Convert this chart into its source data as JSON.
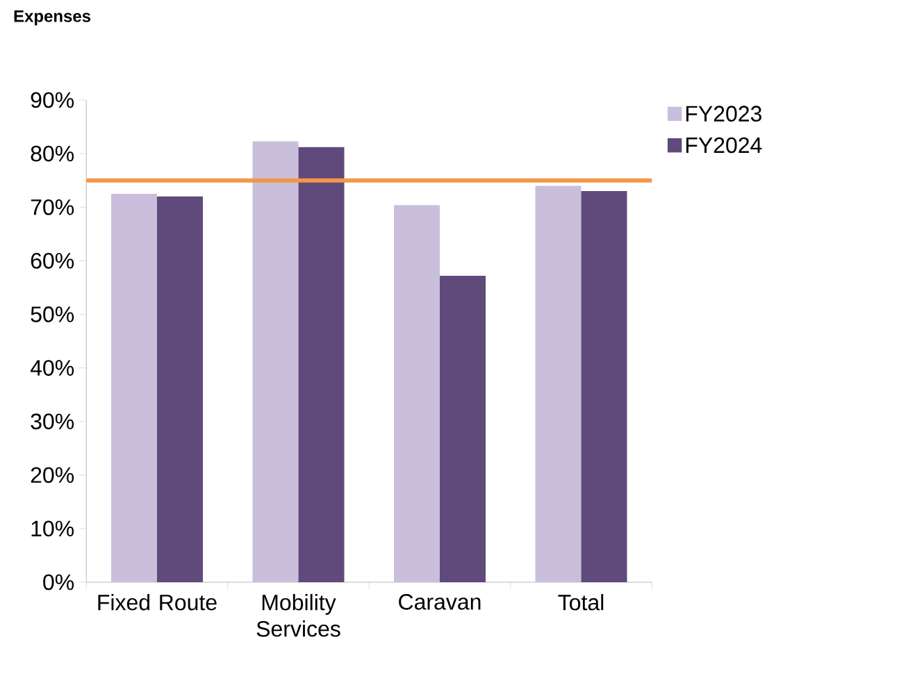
{
  "chart_data": {
    "type": "bar",
    "title": "Expenses",
    "categories": [
      "Fixed Route",
      "Mobility Services",
      "Caravan",
      "Total"
    ],
    "series": [
      {
        "name": "FY2023",
        "color": "#c9bfdc",
        "values": [
          72.5,
          82.3,
          70.4,
          74.0
        ]
      },
      {
        "name": "FY2024",
        "color": "#5f4a7b",
        "values": [
          72.0,
          81.2,
          57.2,
          73.0
        ]
      }
    ],
    "ylim": [
      0,
      90
    ],
    "yticks": [
      {
        "value": 0,
        "label": "0%"
      },
      {
        "value": 10,
        "label": "10%"
      },
      {
        "value": 20,
        "label": "20%"
      },
      {
        "value": 30,
        "label": "30%"
      },
      {
        "value": 40,
        "label": "40%"
      },
      {
        "value": 50,
        "label": "50%"
      },
      {
        "value": 60,
        "label": "60%"
      },
      {
        "value": 70,
        "label": "70%"
      },
      {
        "value": 80,
        "label": "80%"
      },
      {
        "value": 90,
        "label": "90%"
      }
    ],
    "ref_lines": [
      {
        "axis": "y",
        "value": 75,
        "color": "#f39646"
      }
    ],
    "legend": "top right"
  }
}
